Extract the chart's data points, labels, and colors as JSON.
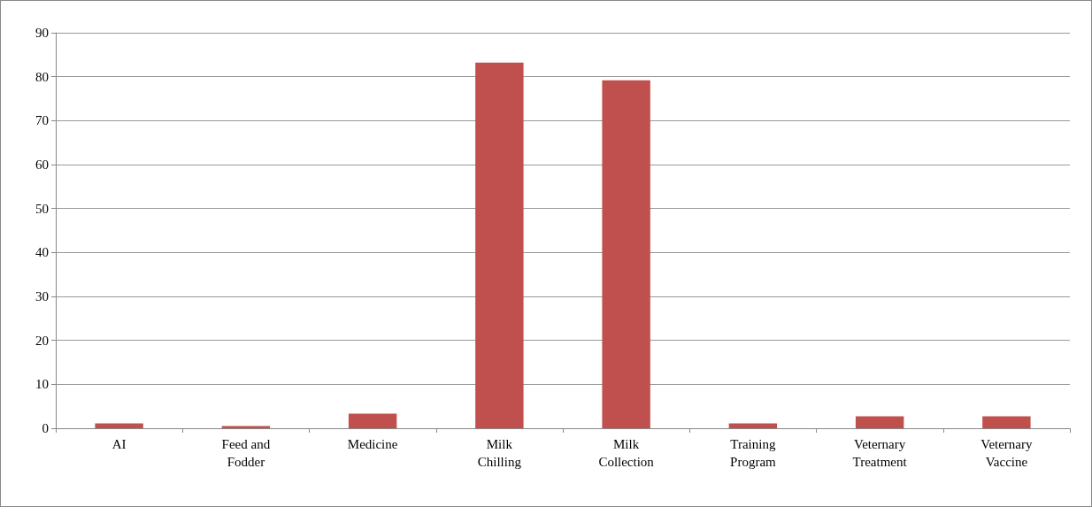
{
  "chart_data": {
    "type": "bar",
    "categories": [
      "AI",
      "Feed and Fodder",
      "Medicine",
      "Milk Chilling",
      "Milk Collection",
      "Training Program",
      "Veternary Treatment",
      "Veternary Vaccine"
    ],
    "values": [
      1.1,
      0.5,
      3.3,
      83.2,
      79.2,
      1.1,
      2.7,
      2.7
    ],
    "color": "#c0504d",
    "ylim": [
      0,
      90
    ],
    "yticks": [
      0,
      10,
      20,
      30,
      40,
      50,
      60,
      70,
      80,
      90
    ],
    "grid": "y"
  }
}
